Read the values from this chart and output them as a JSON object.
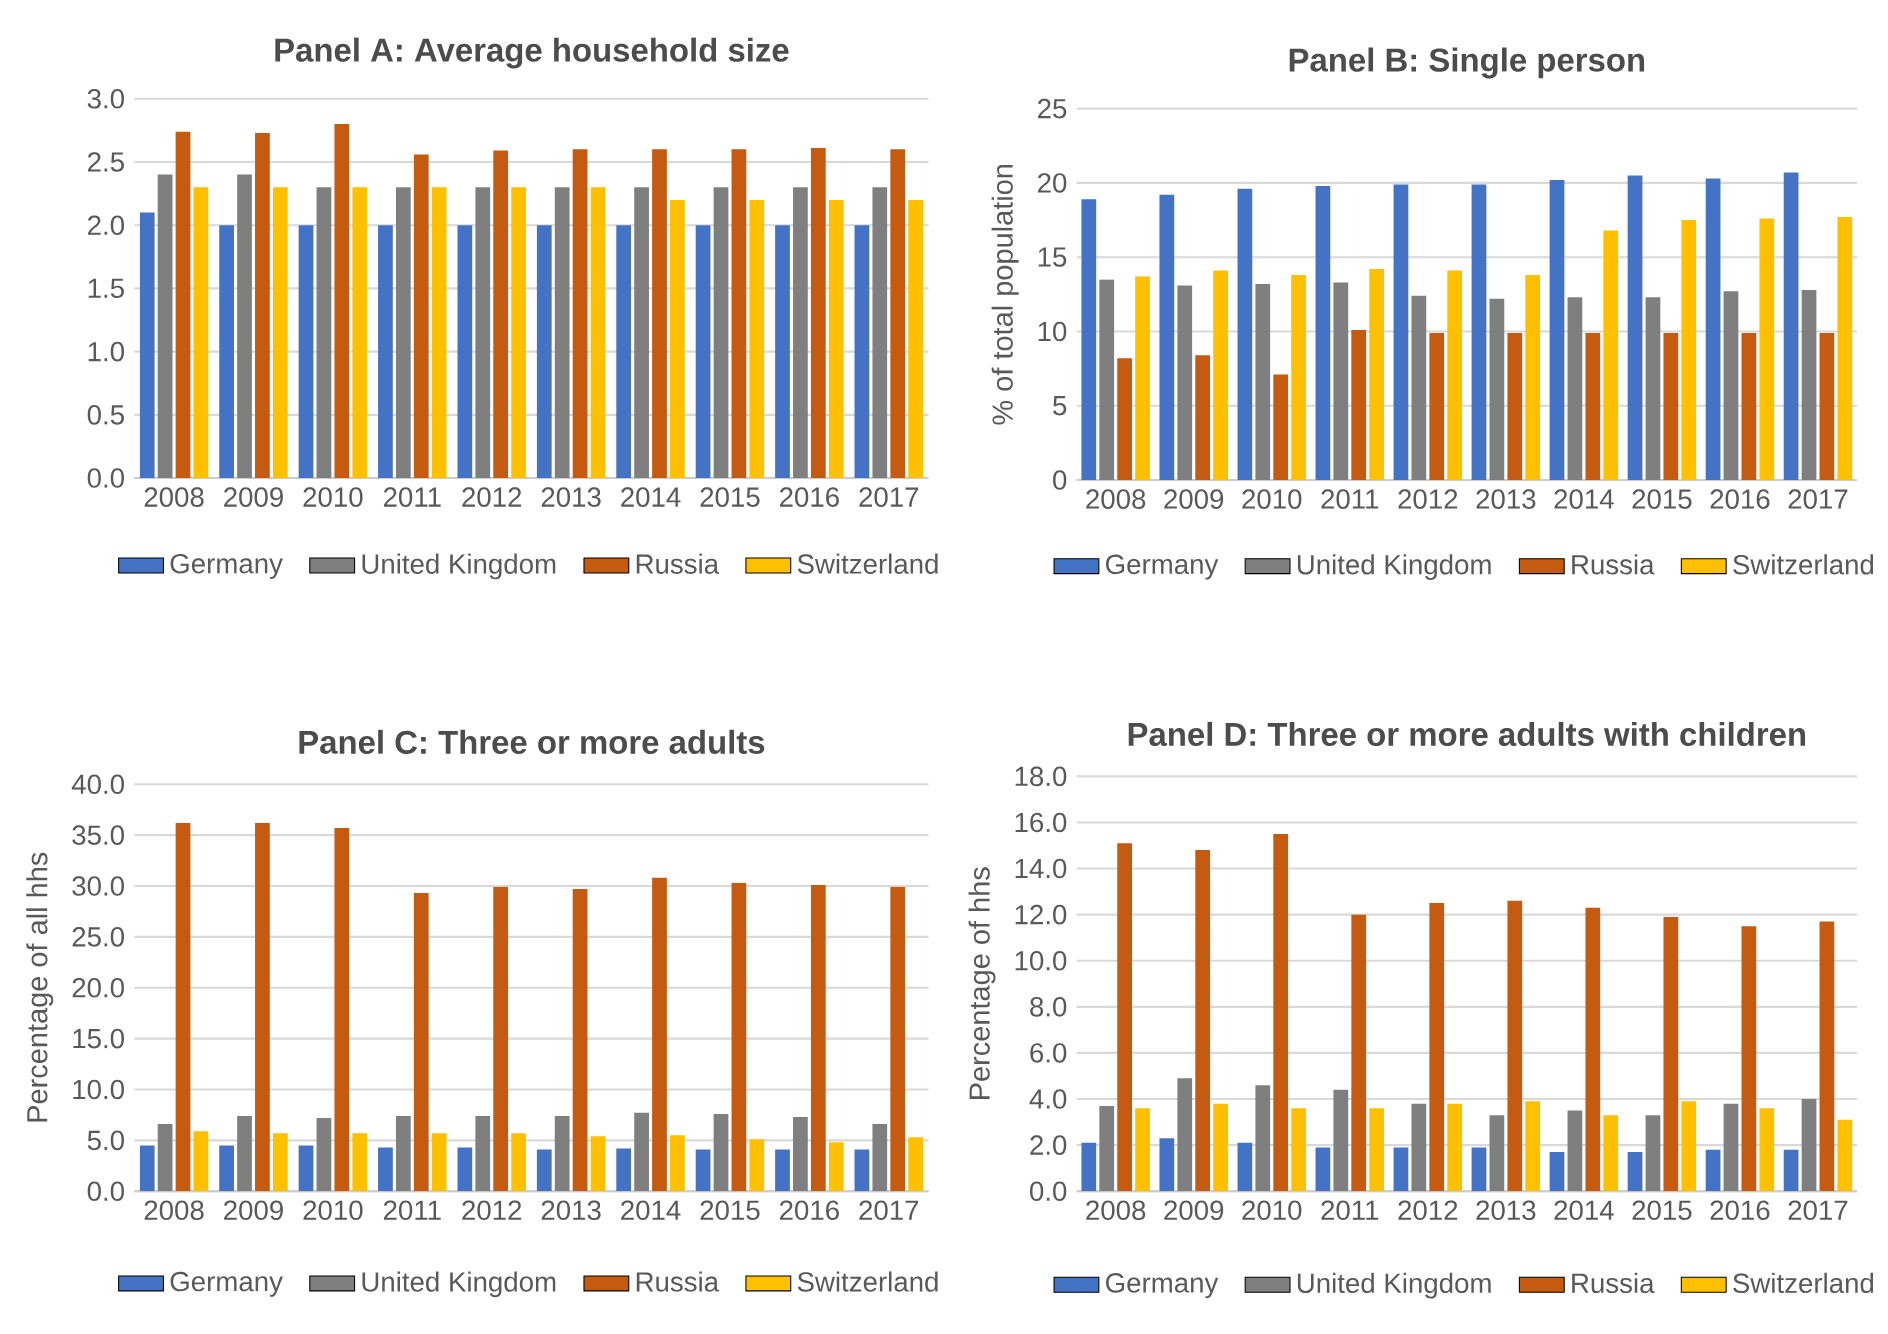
{
  "chart_data": [
    {
      "type": "bar",
      "title": "Panel A: Average household size",
      "categories": [
        "2008",
        "2009",
        "2010",
        "2011",
        "2012",
        "2013",
        "2014",
        "2015",
        "2016",
        "2017"
      ],
      "series": [
        {
          "name": "Germany",
          "color": "#4472c4",
          "values": [
            2.1,
            2.0,
            2.0,
            2.0,
            2.0,
            2.0,
            2.0,
            2.0,
            2.0,
            2.0
          ]
        },
        {
          "name": "United Kingdom",
          "color": "#7f7f7f",
          "values": [
            2.4,
            2.4,
            2.3,
            2.3,
            2.3,
            2.3,
            2.3,
            2.3,
            2.3,
            2.3
          ]
        },
        {
          "name": "Russia",
          "color": "#c55a11",
          "values": [
            2.74,
            2.73,
            2.8,
            2.56,
            2.59,
            2.6,
            2.6,
            2.6,
            2.61,
            2.6
          ]
        },
        {
          "name": "Switzerland",
          "color": "#ffc000",
          "values": [
            2.3,
            2.3,
            2.3,
            2.3,
            2.3,
            2.3,
            2.2,
            2.2,
            2.2,
            2.2
          ]
        }
      ],
      "ylim": [
        0,
        3
      ],
      "yticks": [
        {
          "value": 0,
          "label": "0.0"
        },
        {
          "value": 0.5,
          "label": "0.5"
        },
        {
          "value": 1,
          "label": "1.0"
        },
        {
          "value": 1.5,
          "label": "1.5"
        },
        {
          "value": 2,
          "label": "2.0"
        },
        {
          "value": 2.5,
          "label": "2.5"
        },
        {
          "value": 3,
          "label": "3.0"
        }
      ],
      "grid": "y",
      "legend": "bottom"
    },
    {
      "type": "bar",
      "title": "Panel B: Single person",
      "ylabel": "% of total population",
      "categories": [
        "2008",
        "2009",
        "2010",
        "2011",
        "2012",
        "2013",
        "2014",
        "2015",
        "2016",
        "2017"
      ],
      "series": [
        {
          "name": "Germany",
          "color": "#4472c4",
          "values": [
            18.9,
            19.2,
            19.6,
            19.8,
            19.9,
            19.9,
            20.2,
            20.5,
            20.3,
            20.7
          ]
        },
        {
          "name": "United Kingdom",
          "color": "#7f7f7f",
          "values": [
            13.5,
            13.1,
            13.2,
            13.3,
            12.4,
            12.2,
            12.3,
            12.3,
            12.7,
            12.8
          ]
        },
        {
          "name": "Russia",
          "color": "#c55a11",
          "values": [
            8.2,
            8.4,
            7.1,
            10.1,
            9.9,
            9.9,
            9.9,
            9.9,
            9.9,
            9.9
          ]
        },
        {
          "name": "Switzerland",
          "color": "#ffc000",
          "values": [
            13.7,
            14.1,
            13.8,
            14.2,
            14.1,
            13.8,
            16.8,
            17.5,
            17.6,
            17.7
          ]
        }
      ],
      "ylim": [
        0,
        25
      ],
      "yticks": [
        0,
        5,
        10,
        15,
        20,
        25
      ],
      "grid": "y",
      "legend": "bottom"
    },
    {
      "type": "bar",
      "title": "Panel C: Three or more adults",
      "ylabel": "Percentage of all hhs",
      "categories": [
        "2008",
        "2009",
        "2010",
        "2011",
        "2012",
        "2013",
        "2014",
        "2015",
        "2016",
        "2017"
      ],
      "series": [
        {
          "name": "Germany",
          "color": "#4472c4",
          "values": [
            4.5,
            4.5,
            4.5,
            4.3,
            4.3,
            4.1,
            4.2,
            4.1,
            4.1,
            4.1
          ]
        },
        {
          "name": "United Kingdom",
          "color": "#7f7f7f",
          "values": [
            6.6,
            7.4,
            7.2,
            7.4,
            7.4,
            7.4,
            7.7,
            7.6,
            7.3,
            6.6
          ]
        },
        {
          "name": "Russia",
          "color": "#c55a11",
          "values": [
            36.2,
            36.2,
            35.7,
            29.3,
            29.9,
            29.7,
            30.8,
            30.3,
            30.1,
            29.9
          ]
        },
        {
          "name": "Switzerland",
          "color": "#ffc000",
          "values": [
            5.9,
            5.7,
            5.7,
            5.7,
            5.7,
            5.4,
            5.5,
            5.1,
            4.8,
            5.3
          ]
        }
      ],
      "ylim": [
        0,
        40
      ],
      "yticks": [
        {
          "value": 0,
          "label": "0.0"
        },
        {
          "value": 5,
          "label": "5.0"
        },
        {
          "value": 10,
          "label": "10.0"
        },
        {
          "value": 15,
          "label": "15.0"
        },
        {
          "value": 20,
          "label": "20.0"
        },
        {
          "value": 25,
          "label": "25.0"
        },
        {
          "value": 30,
          "label": "30.0"
        },
        {
          "value": 35,
          "label": "35.0"
        },
        {
          "value": 40,
          "label": "40.0"
        }
      ],
      "grid": "y",
      "legend": "bottom"
    },
    {
      "type": "bar",
      "title": "Panel D: Three or more adults with children",
      "ylabel": "Percentage of hhs",
      "categories": [
        "2008",
        "2009",
        "2010",
        "2011",
        "2012",
        "2013",
        "2014",
        "2015",
        "2016",
        "2017"
      ],
      "series": [
        {
          "name": "Germany",
          "color": "#4472c4",
          "values": [
            2.1,
            2.3,
            2.1,
            1.9,
            1.9,
            1.9,
            1.7,
            1.7,
            1.8,
            1.8
          ]
        },
        {
          "name": "United Kingdom",
          "color": "#7f7f7f",
          "values": [
            3.7,
            4.9,
            4.6,
            4.4,
            3.8,
            3.3,
            3.5,
            3.3,
            3.8,
            4.0
          ]
        },
        {
          "name": "Russia",
          "color": "#c55a11",
          "values": [
            15.1,
            14.8,
            15.5,
            12.0,
            12.5,
            12.6,
            12.3,
            11.9,
            11.5,
            11.7
          ]
        },
        {
          "name": "Switzerland",
          "color": "#ffc000",
          "values": [
            3.6,
            3.8,
            3.6,
            3.6,
            3.8,
            3.9,
            3.3,
            3.9,
            3.6,
            3.1
          ]
        }
      ],
      "ylim": [
        0,
        18
      ],
      "yticks": [
        {
          "value": 0,
          "label": "0.0"
        },
        {
          "value": 2,
          "label": "2.0"
        },
        {
          "value": 4,
          "label": "4.0"
        },
        {
          "value": 6,
          "label": "6.0"
        },
        {
          "value": 8,
          "label": "8.0"
        },
        {
          "value": 10,
          "label": "10.0"
        },
        {
          "value": 12,
          "label": "12.0"
        },
        {
          "value": 14,
          "label": "14.0"
        },
        {
          "value": 16,
          "label": "16.0"
        },
        {
          "value": 18,
          "label": "18.0"
        }
      ],
      "grid": "y",
      "legend": "bottom"
    }
  ]
}
